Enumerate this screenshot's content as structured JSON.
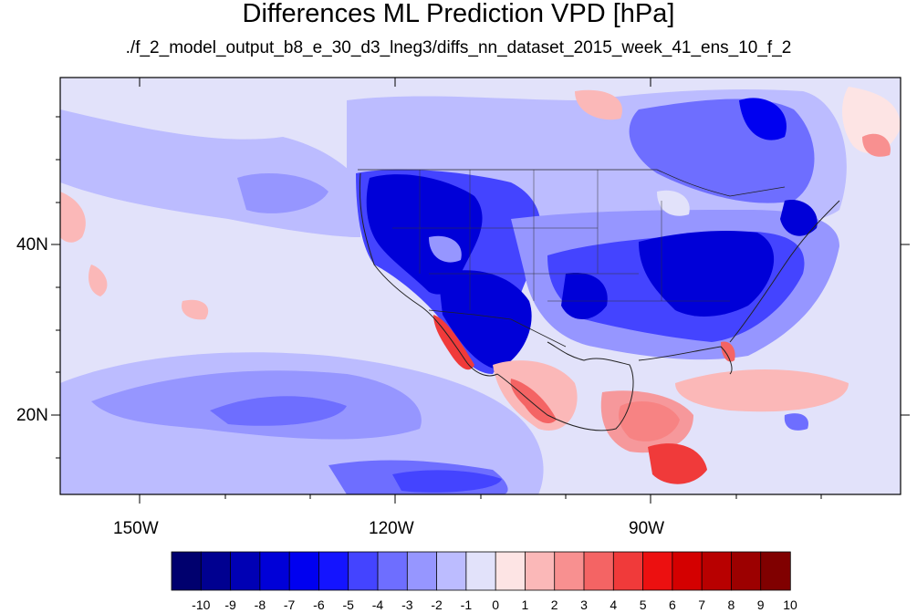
{
  "title": "Differences ML Prediction VPD [hPa]",
  "subtitle": "./f_2_model_output_b8_e_30_d3_lneg3/diffs_nn_dataset_2015_week_41_ens_10_f_2",
  "axes": {
    "x_ticks": [
      "150W",
      "120W",
      "90W"
    ],
    "y_ticks": [
      "40N",
      "20N"
    ]
  },
  "colorbar": {
    "labels": [
      "-10",
      "-9",
      "-8",
      "-7",
      "-6",
      "-5",
      "-4",
      "-3",
      "-2",
      "-1",
      "0",
      "1",
      "2",
      "3",
      "4",
      "5",
      "6",
      "7",
      "8",
      "9",
      "10"
    ],
    "colors": [
      "#00006e",
      "#000090",
      "#0000b4",
      "#0000d8",
      "#0000f0",
      "#1414ff",
      "#4444ff",
      "#6e6eff",
      "#9696ff",
      "#bcbcff",
      "#e2e2fa",
      "#fde4e4",
      "#fbb8b8",
      "#f89090",
      "#f46464",
      "#f03a3a",
      "#ec1010",
      "#d40000",
      "#b80000",
      "#9c0000",
      "#800000"
    ]
  },
  "map_colors": {
    "background": "#e2e2fa",
    "deep_blue": "#0000d8",
    "mid_blue": "#4444ff",
    "light_blue": "#9696ff",
    "pale_blue": "#bcbcff",
    "pale_red": "#fde4e4",
    "light_red": "#fbb8b8",
    "mid_red": "#f46464",
    "strong_red": "#ec1010"
  }
}
